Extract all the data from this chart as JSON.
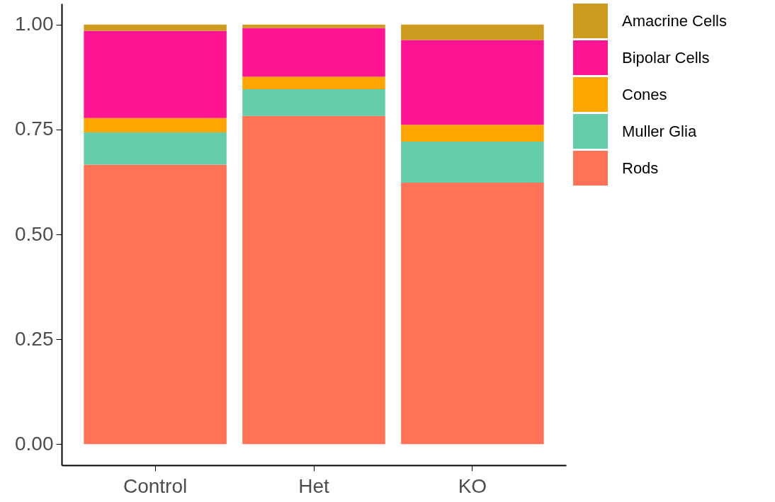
{
  "chart_data": {
    "type": "bar",
    "stacked": true,
    "categories": [
      "Control",
      "Het",
      "KO"
    ],
    "series": [
      {
        "name": "Rods",
        "color": "#ff7256",
        "values": [
          0.666,
          0.782,
          0.623
        ]
      },
      {
        "name": "Muller Glia",
        "color": "#66cdaa",
        "values": [
          0.077,
          0.064,
          0.098
        ]
      },
      {
        "name": "Cones",
        "color": "#ffa500",
        "values": [
          0.034,
          0.03,
          0.04
        ]
      },
      {
        "name": "Bipolar Cells",
        "color": "#ff1493",
        "values": [
          0.208,
          0.116,
          0.202
        ]
      },
      {
        "name": "Amacrine Cells",
        "color": "#cd9b1d",
        "values": [
          0.015,
          0.008,
          0.037
        ]
      }
    ],
    "ylim": [
      -0.05,
      1.05
    ],
    "yticks": [
      {
        "value": 0,
        "label": "0.00"
      },
      {
        "value": 0.25,
        "label": "0.25"
      },
      {
        "value": 0.5,
        "label": "0.50"
      },
      {
        "value": 0.75,
        "label": "0.75"
      },
      {
        "value": 1,
        "label": "1.00"
      }
    ],
    "grid": false,
    "legend": "right"
  }
}
